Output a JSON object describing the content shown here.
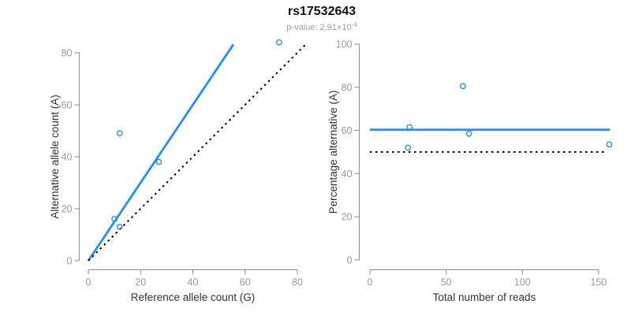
{
  "header": {
    "title": "rs17532643",
    "subtitle_prefix": "p-value: 2.91×10",
    "subtitle_exponent": "-4"
  },
  "colors": {
    "line_blue": "#1E90FF",
    "dotted_black": "#000000",
    "axis_gray": "#8c8c8c",
    "tick_label_gray": "#9b9b9b",
    "axis_label_dark": "#333333",
    "title_black": "#111111",
    "subtitle_gray": "#9e9e9e"
  },
  "chart_data": [
    {
      "id": "left",
      "type": "scatter",
      "title": "",
      "xlabel": "Reference allele count (G)",
      "ylabel": "Alternative allele count (A)",
      "xlim": [
        0,
        83
      ],
      "ylim": [
        0,
        84
      ],
      "grid": false,
      "legend": "none",
      "xticks": [
        0,
        20,
        40,
        60,
        80
      ],
      "yticks": [
        0,
        20,
        40,
        60,
        80
      ],
      "points": [
        [
          10,
          16
        ],
        [
          12,
          13
        ],
        [
          12,
          49
        ],
        [
          27,
          38
        ],
        [
          73,
          84
        ]
      ],
      "lines": [
        {
          "name": "regression-fit-line",
          "style": "solid",
          "color": "#1E90FF",
          "from": [
            0,
            0
          ],
          "to": [
            55.5,
            83.2
          ]
        },
        {
          "name": "identity-line-y-equals-x",
          "style": "dotted",
          "color": "#000000",
          "from": [
            0,
            0
          ],
          "to": [
            83.2,
            83.2
          ]
        }
      ]
    },
    {
      "id": "right",
      "type": "scatter",
      "title": "",
      "xlabel": "Total number of reads",
      "ylabel": "Percentage alternative (A)",
      "xlim": [
        0,
        158
      ],
      "ylim": [
        0,
        100
      ],
      "grid": false,
      "legend": "none",
      "xticks": [
        0,
        50,
        100,
        150
      ],
      "yticks": [
        0,
        20,
        40,
        60,
        80,
        100
      ],
      "points": [
        [
          26,
          61.5
        ],
        [
          25,
          52
        ],
        [
          61,
          80.5
        ],
        [
          65,
          58.5
        ],
        [
          157,
          53.5
        ]
      ],
      "lines": [
        {
          "name": "fitted-percentage-line",
          "style": "solid",
          "color": "#1E90FF",
          "from": [
            0,
            60.3
          ],
          "to": [
            157.5,
            60.3
          ]
        },
        {
          "name": "fifty-percent-null-line",
          "style": "dotted",
          "color": "#000000",
          "from": [
            0,
            50
          ],
          "to": [
            155,
            50
          ]
        }
      ]
    }
  ]
}
